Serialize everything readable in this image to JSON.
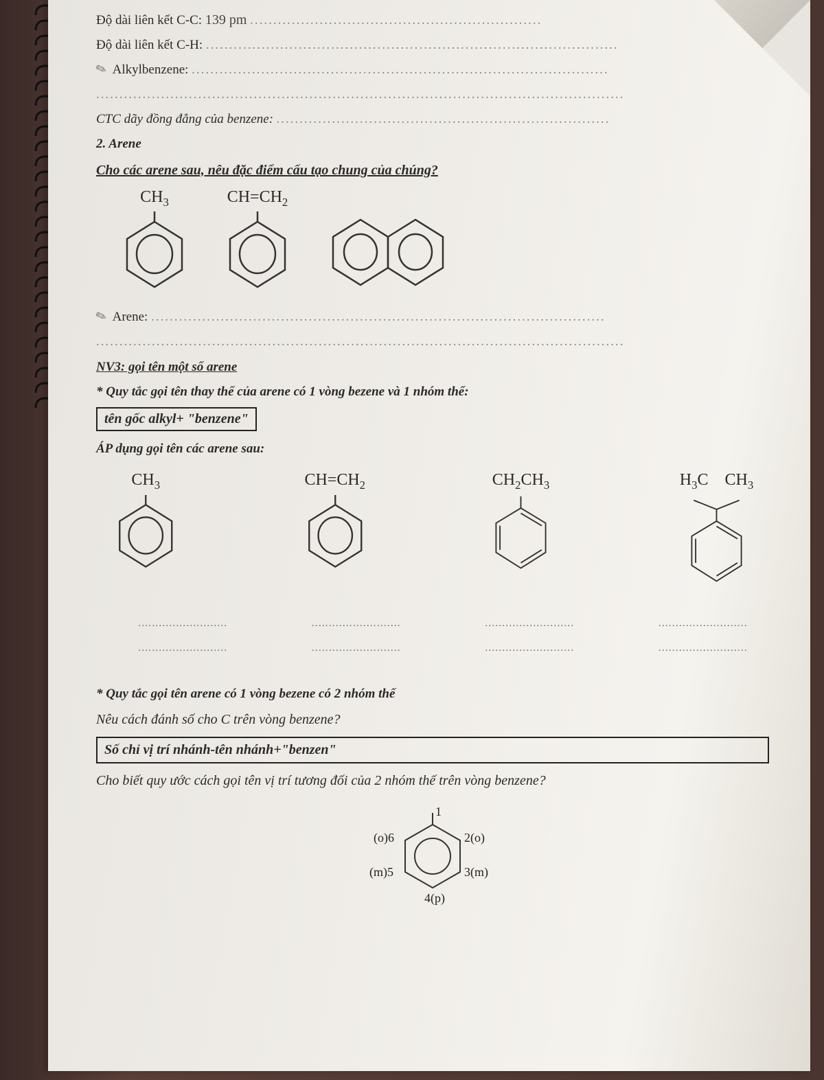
{
  "colors": {
    "desk": "#4a3530",
    "paper": "#eeebe6",
    "ink": "#2a2a2a",
    "dots": "#888888",
    "border": "#222222",
    "handwriting": "#444444"
  },
  "binding": {
    "ring_count": 27
  },
  "lines": {
    "cc_label": "Độ dài liên kết C-C: ",
    "cc_value": "139 pm",
    "ch_label": "Độ dài liên kết C-H: ",
    "alkylbenzene_label": "Alkylbenzene: ",
    "ctc_label": "CTC dãy đồng đẳng của benzene: ",
    "section2": "2. Arene",
    "prompt_arene": "Cho các arene sau, nêu đặc điểm cấu tạo chung của chúng?",
    "arene_label": "Arene: ",
    "nv3_heading": "NV3: gọi tên một số arene",
    "rule1_intro": "* Quy tắc gọi tên thay thế của arene có 1 vòng bezene và 1 nhóm thế:",
    "rule1_box": "tên gốc alkyl+ \"benzene\"",
    "apply_label": "ÁP dụng gọi tên các arene sau:",
    "rule2_intro": "* Quy tắc gọi tên arene có 1 vòng bezene có 2 nhóm thế",
    "rule2_question": "Nêu cách đánh số cho C trên vòng benzene?",
    "rule2_box": "Số chỉ vị trí nhánh-tên nhánh+\"benzen\"",
    "rule2_q2": "Cho biết quy ước cách gọi tên vị trí tương đối của 2 nhóm thế trên vòng benzene?"
  },
  "molecules_row1": [
    {
      "label_html": "CH<sub>3</sub>",
      "ring": "circle"
    },
    {
      "label_html": "CH=CH<sub>2</sub>",
      "ring": "circle"
    },
    {
      "label_html": "",
      "ring": "naphthalene"
    }
  ],
  "molecules_row2": [
    {
      "label_html": "CH<sub>3</sub>",
      "ring": "circle"
    },
    {
      "label_html": "CH=CH<sub>2</sub>",
      "ring": "circle"
    },
    {
      "label_html": "CH<sub>2</sub>CH<sub>3</sub>",
      "ring": "kekule"
    },
    {
      "label_html": "H<sub>3</sub>C&nbsp;&nbsp;&nbsp;&nbsp;CH<sub>3</sub>",
      "ring": "kekule_iso"
    }
  ],
  "ortho_diagram": {
    "positions": {
      "1": "1",
      "2": "2(o)",
      "3": "3(m)",
      "4": "4(p)",
      "5": "(m)5",
      "6": "(o)6"
    }
  },
  "fonts": {
    "body": "Times New Roman",
    "body_size_pt": 14,
    "heading_size_pt": 15,
    "formula_size_pt": 18
  }
}
